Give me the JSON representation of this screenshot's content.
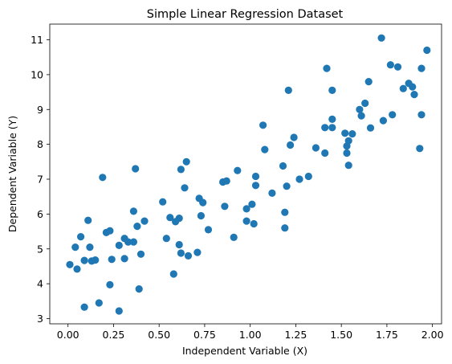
{
  "chart_data": {
    "type": "scatter",
    "title": "Simple Linear Regression Dataset",
    "xlabel": "Independent Variable (X)",
    "ylabel": "Dependent Variable (Y)",
    "xlim": [
      -0.1,
      2.05
    ],
    "ylim": [
      2.85,
      11.45
    ],
    "xticks": [
      0.0,
      0.25,
      0.5,
      0.75,
      1.0,
      1.25,
      1.5,
      1.75,
      2.0
    ],
    "xtick_labels": [
      "0.00",
      "0.25",
      "0.50",
      "0.75",
      "1.00",
      "1.25",
      "1.50",
      "1.75",
      "2.00"
    ],
    "yticks": [
      3,
      4,
      5,
      6,
      7,
      8,
      9,
      10,
      11
    ],
    "ytick_labels": [
      "3",
      "4",
      "5",
      "6",
      "7",
      "8",
      "9",
      "10",
      "11"
    ],
    "grid": false,
    "marker_color": "#1f77b4",
    "points": [
      {
        "x": 0.01,
        "y": 4.55
      },
      {
        "x": 0.04,
        "y": 5.05
      },
      {
        "x": 0.05,
        "y": 4.42
      },
      {
        "x": 0.07,
        "y": 5.35
      },
      {
        "x": 0.09,
        "y": 3.33
      },
      {
        "x": 0.09,
        "y": 4.67
      },
      {
        "x": 0.11,
        "y": 5.82
      },
      {
        "x": 0.12,
        "y": 5.05
      },
      {
        "x": 0.13,
        "y": 4.65
      },
      {
        "x": 0.15,
        "y": 4.68
      },
      {
        "x": 0.17,
        "y": 3.45
      },
      {
        "x": 0.19,
        "y": 7.05
      },
      {
        "x": 0.21,
        "y": 5.47
      },
      {
        "x": 0.23,
        "y": 3.97
      },
      {
        "x": 0.23,
        "y": 5.52
      },
      {
        "x": 0.24,
        "y": 4.7
      },
      {
        "x": 0.28,
        "y": 5.1
      },
      {
        "x": 0.28,
        "y": 3.22
      },
      {
        "x": 0.31,
        "y": 5.3
      },
      {
        "x": 0.31,
        "y": 4.72
      },
      {
        "x": 0.33,
        "y": 5.2
      },
      {
        "x": 0.36,
        "y": 5.2
      },
      {
        "x": 0.36,
        "y": 6.08
      },
      {
        "x": 0.37,
        "y": 7.3
      },
      {
        "x": 0.38,
        "y": 5.65
      },
      {
        "x": 0.39,
        "y": 3.85
      },
      {
        "x": 0.4,
        "y": 4.85
      },
      {
        "x": 0.42,
        "y": 5.8
      },
      {
        "x": 0.52,
        "y": 6.35
      },
      {
        "x": 0.54,
        "y": 5.3
      },
      {
        "x": 0.56,
        "y": 5.9
      },
      {
        "x": 0.58,
        "y": 4.28
      },
      {
        "x": 0.59,
        "y": 5.78
      },
      {
        "x": 0.61,
        "y": 5.88
      },
      {
        "x": 0.61,
        "y": 5.12
      },
      {
        "x": 0.62,
        "y": 7.28
      },
      {
        "x": 0.62,
        "y": 4.88
      },
      {
        "x": 0.64,
        "y": 6.75
      },
      {
        "x": 0.65,
        "y": 7.5
      },
      {
        "x": 0.66,
        "y": 4.8
      },
      {
        "x": 0.71,
        "y": 4.9
      },
      {
        "x": 0.72,
        "y": 6.45
      },
      {
        "x": 0.73,
        "y": 5.95
      },
      {
        "x": 0.74,
        "y": 6.33
      },
      {
        "x": 0.77,
        "y": 5.55
      },
      {
        "x": 0.85,
        "y": 6.92
      },
      {
        "x": 0.86,
        "y": 6.22
      },
      {
        "x": 0.87,
        "y": 6.95
      },
      {
        "x": 0.91,
        "y": 5.33
      },
      {
        "x": 0.93,
        "y": 7.25
      },
      {
        "x": 0.98,
        "y": 6.15
      },
      {
        "x": 0.98,
        "y": 5.8
      },
      {
        "x": 1.01,
        "y": 6.28
      },
      {
        "x": 1.02,
        "y": 5.72
      },
      {
        "x": 1.03,
        "y": 7.08
      },
      {
        "x": 1.03,
        "y": 6.82
      },
      {
        "x": 1.07,
        "y": 8.55
      },
      {
        "x": 1.08,
        "y": 7.85
      },
      {
        "x": 1.12,
        "y": 6.6
      },
      {
        "x": 1.18,
        "y": 7.38
      },
      {
        "x": 1.19,
        "y": 5.6
      },
      {
        "x": 1.19,
        "y": 6.05
      },
      {
        "x": 1.2,
        "y": 6.8
      },
      {
        "x": 1.21,
        "y": 9.55
      },
      {
        "x": 1.22,
        "y": 7.98
      },
      {
        "x": 1.24,
        "y": 8.2
      },
      {
        "x": 1.27,
        "y": 7.0
      },
      {
        "x": 1.32,
        "y": 7.08
      },
      {
        "x": 1.36,
        "y": 7.9
      },
      {
        "x": 1.41,
        "y": 8.48
      },
      {
        "x": 1.41,
        "y": 7.75
      },
      {
        "x": 1.42,
        "y": 10.18
      },
      {
        "x": 1.45,
        "y": 9.55
      },
      {
        "x": 1.45,
        "y": 8.72
      },
      {
        "x": 1.45,
        "y": 8.48
      },
      {
        "x": 1.52,
        "y": 8.32
      },
      {
        "x": 1.53,
        "y": 7.95
      },
      {
        "x": 1.53,
        "y": 7.75
      },
      {
        "x": 1.54,
        "y": 8.1
      },
      {
        "x": 1.54,
        "y": 7.4
      },
      {
        "x": 1.56,
        "y": 8.3
      },
      {
        "x": 1.6,
        "y": 9.0
      },
      {
        "x": 1.61,
        "y": 8.82
      },
      {
        "x": 1.63,
        "y": 9.18
      },
      {
        "x": 1.65,
        "y": 9.8
      },
      {
        "x": 1.66,
        "y": 8.47
      },
      {
        "x": 1.72,
        "y": 11.05
      },
      {
        "x": 1.73,
        "y": 8.68
      },
      {
        "x": 1.77,
        "y": 10.28
      },
      {
        "x": 1.78,
        "y": 8.85
      },
      {
        "x": 1.81,
        "y": 10.22
      },
      {
        "x": 1.84,
        "y": 9.6
      },
      {
        "x": 1.87,
        "y": 9.75
      },
      {
        "x": 1.89,
        "y": 9.65
      },
      {
        "x": 1.9,
        "y": 9.43
      },
      {
        "x": 1.93,
        "y": 7.88
      },
      {
        "x": 1.94,
        "y": 10.18
      },
      {
        "x": 1.94,
        "y": 8.85
      },
      {
        "x": 1.97,
        "y": 10.7
      }
    ]
  }
}
